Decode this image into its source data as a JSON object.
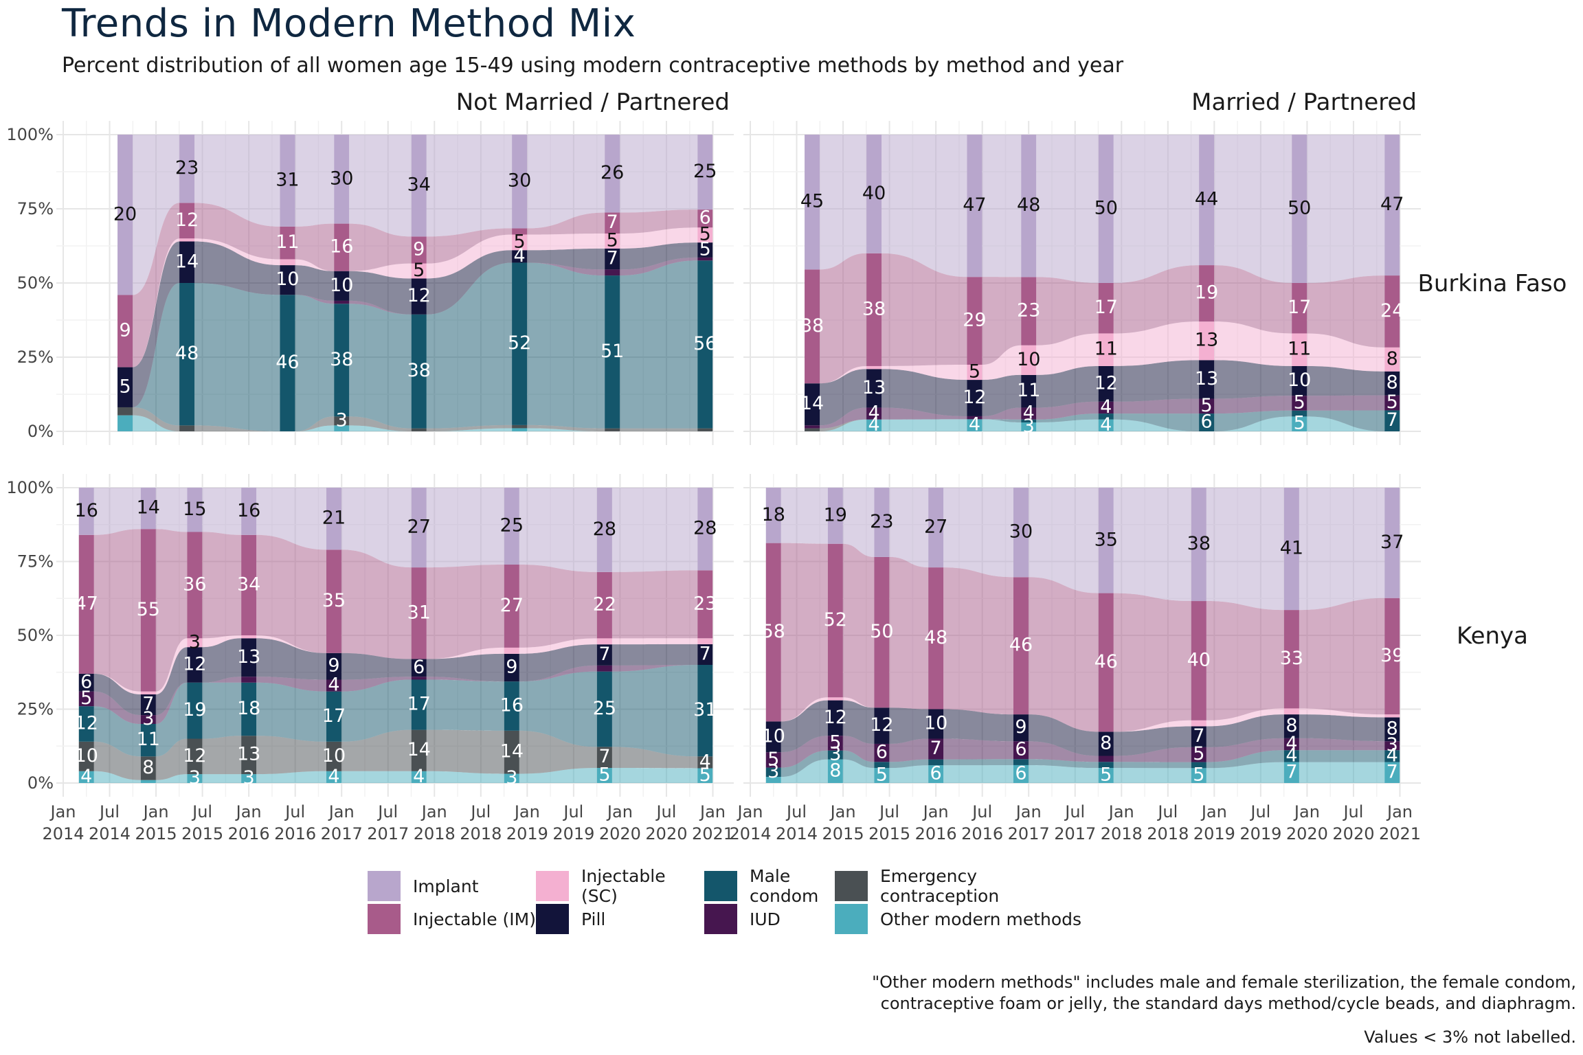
{
  "title": "Trends in Modern Method Mix",
  "subtitle": "Percent distribution of all women age 15-49 using modern contraceptive methods by method and year",
  "notes": [
    "\"Other modern methods\" includes male and female sterilization, the female condom,",
    "contraceptive foam or jelly, the standard days method/cycle beads, and diaphragm."
  ],
  "note_small": "Values < 3% not labelled.",
  "colors": {
    "Other modern methods": "#4badbd",
    "Emergency contraception": "#4a5053",
    "Male condom": "#14566b",
    "IUD": "#46164f",
    "Pill": "#12143a",
    "Injectable (SC)": "#f4b0d1",
    "Injectable (IM)": "#a85b8a",
    "Implant": "#b8a6cc"
  },
  "legend": [
    {
      "name": "Implant",
      "color": "#b8a6cc"
    },
    {
      "name": "Injectable (SC)",
      "color": "#f4b0d1"
    },
    {
      "name": "Male condom",
      "color": "#14566b"
    },
    {
      "name": "Emergency contraception",
      "color": "#4a5053"
    },
    {
      "name": "Injectable (IM)",
      "color": "#a85b8a"
    },
    {
      "name": "Pill",
      "color": "#12143a"
    },
    {
      "name": "IUD",
      "color": "#46164f"
    },
    {
      "name": "Other modern methods",
      "color": "#4badbd"
    }
  ],
  "chart_data": {
    "type": "area",
    "description_of_encoding": "Stacked alluvial bars per survey date; values are percent of modern method users. Stack order bottom to top: Other modern methods, Emergency contraception, Male condom, IUD, Pill, Injectable (SC), Injectable (IM), Implant.",
    "x_axis": {
      "range": [
        "2014-01",
        "2021-03"
      ],
      "tick_labels": [
        [
          "Jan",
          "2014"
        ],
        [
          "Jul",
          "2014"
        ],
        [
          "Jan",
          "2015"
        ],
        [
          "Jul",
          "2015"
        ],
        [
          "Jan",
          "2016"
        ],
        [
          "Jul",
          "2016"
        ],
        [
          "Jan",
          "2017"
        ],
        [
          "Jul",
          "2017"
        ],
        [
          "Jan",
          "2018"
        ],
        [
          "Jul",
          "2018"
        ],
        [
          "Jan",
          "2019"
        ],
        [
          "Jul",
          "2019"
        ],
        [
          "Jan",
          "2020"
        ],
        [
          "Jul",
          "2020"
        ],
        [
          "Jan",
          "2021"
        ]
      ]
    },
    "y_axis": {
      "ylim": [
        0,
        100
      ],
      "tick_labels": [
        "0%",
        "25%",
        "50%",
        "75%",
        "100%"
      ]
    },
    "grid": true,
    "legend_position": "bottom",
    "stack_order": [
      "Other modern methods",
      "Emergency contraception",
      "Male condom",
      "IUD",
      "Pill",
      "Injectable (SC)",
      "Injectable (IM)",
      "Implant"
    ],
    "panels": [
      {
        "row": "Burkina Faso",
        "col": "Not Married / Partnered",
        "series": [
          {
            "date": "2014-09",
            "values": {
              "Other modern methods": 2,
              "Emergency contraception": 1,
              "Male condom": 0,
              "IUD": 0,
              "Pill": 5,
              "Injectable (SC)": 0,
              "Injectable (IM)": 9,
              "Implant": 20
            }
          },
          {
            "date": "2015-05",
            "values": {
              "Other modern methods": 0,
              "Emergency contraception": 2,
              "Male condom": 48,
              "IUD": 0,
              "Pill": 14,
              "Injectable (SC)": 1,
              "Injectable (IM)": 12,
              "Implant": 23
            }
          },
          {
            "date": "2016-06",
            "values": {
              "Other modern methods": 0,
              "Emergency contraception": 0,
              "Male condom": 46,
              "IUD": 0,
              "Pill": 10,
              "Injectable (SC)": 2,
              "Injectable (IM)": 11,
              "Implant": 31
            }
          },
          {
            "date": "2017-01",
            "values": {
              "Other modern methods": 2,
              "Emergency contraception": 3,
              "Male condom": 38,
              "IUD": 1,
              "Pill": 10,
              "Injectable (SC)": 0,
              "Injectable (IM)": 16,
              "Implant": 30
            }
          },
          {
            "date": "2017-11",
            "values": {
              "Other modern methods": 0,
              "Emergency contraception": 1,
              "Male condom": 38,
              "IUD": 0,
              "Pill": 12,
              "Injectable (SC)": 5,
              "Injectable (IM)": 9,
              "Implant": 34
            }
          },
          {
            "date": "2018-12",
            "values": {
              "Other modern methods": 1,
              "Emergency contraception": 1,
              "Male condom": 52,
              "IUD": 0,
              "Pill": 4,
              "Injectable (SC)": 5,
              "Injectable (IM)": 2,
              "Implant": 30
            }
          },
          {
            "date": "2019-12",
            "values": {
              "Other modern methods": 0,
              "Emergency contraception": 1,
              "Male condom": 51,
              "IUD": 2,
              "Pill": 7,
              "Injectable (SC)": 5,
              "Injectable (IM)": 7,
              "Implant": 26
            }
          },
          {
            "date": "2020-12",
            "values": {
              "Other modern methods": 0,
              "Emergency contraception": 1,
              "Male condom": 56,
              "IUD": 1,
              "Pill": 5,
              "Injectable (SC)": 5,
              "Injectable (IM)": 6,
              "Implant": 25
            }
          }
        ]
      },
      {
        "row": "Burkina Faso",
        "col": "Married / Partnered",
        "series": [
          {
            "date": "2014-09",
            "values": {
              "Other modern methods": 0,
              "Emergency contraception": 1,
              "Male condom": 0,
              "IUD": 1,
              "Pill": 14,
              "Injectable (SC)": 0,
              "Injectable (IM)": 38,
              "Implant": 45
            }
          },
          {
            "date": "2015-05",
            "values": {
              "Other modern methods": 4,
              "Emergency contraception": 0,
              "Male condom": 0,
              "IUD": 4,
              "Pill": 13,
              "Injectable (SC)": 1,
              "Injectable (IM)": 38,
              "Implant": 40
            }
          },
          {
            "date": "2016-06",
            "values": {
              "Other modern methods": 4,
              "Emergency contraception": 0,
              "Male condom": 0,
              "IUD": 1,
              "Pill": 12,
              "Injectable (SC)": 5,
              "Injectable (IM)": 29,
              "Implant": 47
            }
          },
          {
            "date": "2017-01",
            "values": {
              "Other modern methods": 3,
              "Emergency contraception": 0,
              "Male condom": 1,
              "IUD": 4,
              "Pill": 11,
              "Injectable (SC)": 10,
              "Injectable (IM)": 23,
              "Implant": 48
            }
          },
          {
            "date": "2017-11",
            "values": {
              "Other modern methods": 4,
              "Emergency contraception": 0,
              "Male condom": 2,
              "IUD": 4,
              "Pill": 12,
              "Injectable (SC)": 11,
              "Injectable (IM)": 17,
              "Implant": 50
            }
          },
          {
            "date": "2018-12",
            "values": {
              "Other modern methods": 0,
              "Emergency contraception": 0,
              "Male condom": 6,
              "IUD": 5,
              "Pill": 13,
              "Injectable (SC)": 13,
              "Injectable (IM)": 19,
              "Implant": 44
            }
          },
          {
            "date": "2019-12",
            "values": {
              "Other modern methods": 5,
              "Emergency contraception": 0,
              "Male condom": 2,
              "IUD": 5,
              "Pill": 10,
              "Injectable (SC)": 11,
              "Injectable (IM)": 17,
              "Implant": 50
            }
          },
          {
            "date": "2020-12",
            "values": {
              "Other modern methods": 0,
              "Emergency contraception": 0,
              "Male condom": 7,
              "IUD": 5,
              "Pill": 8,
              "Injectable (SC)": 8,
              "Injectable (IM)": 24,
              "Implant": 47
            }
          }
        ]
      },
      {
        "row": "Kenya",
        "col": "Not Married / Partnered",
        "series": [
          {
            "date": "2014-04",
            "values": {
              "Other modern methods": 4,
              "Emergency contraception": 10,
              "Male condom": 12,
              "IUD": 5,
              "Pill": 6,
              "Injectable (SC)": 0,
              "Injectable (IM)": 47,
              "Implant": 16
            }
          },
          {
            "date": "2014-12",
            "values": {
              "Other modern methods": 1,
              "Emergency contraception": 8,
              "Male condom": 11,
              "IUD": 3,
              "Pill": 7,
              "Injectable (SC)": 1,
              "Injectable (IM)": 55,
              "Implant": 14
            }
          },
          {
            "date": "2015-06",
            "values": {
              "Other modern methods": 3,
              "Emergency contraception": 12,
              "Male condom": 19,
              "IUD": 0,
              "Pill": 12,
              "Injectable (SC)": 3,
              "Injectable (IM)": 36,
              "Implant": 15
            }
          },
          {
            "date": "2016-01",
            "values": {
              "Other modern methods": 3,
              "Emergency contraception": 13,
              "Male condom": 18,
              "IUD": 2,
              "Pill": 13,
              "Injectable (SC)": 1,
              "Injectable (IM)": 34,
              "Implant": 16
            }
          },
          {
            "date": "2016-12",
            "values": {
              "Other modern methods": 4,
              "Emergency contraception": 10,
              "Male condom": 17,
              "IUD": 4,
              "Pill": 9,
              "Injectable (SC)": 0,
              "Injectable (IM)": 35,
              "Implant": 21
            }
          },
          {
            "date": "2017-11",
            "values": {
              "Other modern methods": 4,
              "Emergency contraception": 14,
              "Male condom": 17,
              "IUD": 1,
              "Pill": 6,
              "Injectable (SC)": 0,
              "Injectable (IM)": 31,
              "Implant": 27
            }
          },
          {
            "date": "2018-11",
            "values": {
              "Other modern methods": 3,
              "Emergency contraception": 14,
              "Male condom": 16,
              "IUD": 0,
              "Pill": 9,
              "Injectable (SC)": 2,
              "Injectable (IM)": 27,
              "Implant": 25
            }
          },
          {
            "date": "2019-11",
            "values": {
              "Other modern methods": 5,
              "Emergency contraception": 7,
              "Male condom": 25,
              "IUD": 2,
              "Pill": 7,
              "Injectable (SC)": 2,
              "Injectable (IM)": 22,
              "Implant": 28
            }
          },
          {
            "date": "2020-12",
            "values": {
              "Other modern methods": 5,
              "Emergency contraception": 4,
              "Male condom": 31,
              "IUD": 0,
              "Pill": 7,
              "Injectable (SC)": 2,
              "Injectable (IM)": 23,
              "Implant": 28
            }
          }
        ]
      },
      {
        "row": "Kenya",
        "col": "Married / Partnered",
        "series": [
          {
            "date": "2014-04",
            "values": {
              "Other modern methods": 2,
              "Emergency contraception": 0,
              "Male condom": 3,
              "IUD": 5,
              "Pill": 10,
              "Injectable (SC)": 0,
              "Injectable (IM)": 58,
              "Implant": 18
            }
          },
          {
            "date": "2014-12",
            "values": {
              "Other modern methods": 8,
              "Emergency contraception": 0,
              "Male condom": 3,
              "IUD": 5,
              "Pill": 12,
              "Injectable (SC)": 1,
              "Injectable (IM)": 52,
              "Implant": 19
            }
          },
          {
            "date": "2015-06",
            "values": {
              "Other modern methods": 5,
              "Emergency contraception": 0,
              "Male condom": 2,
              "IUD": 6,
              "Pill": 12,
              "Injectable (SC)": 0,
              "Injectable (IM)": 50,
              "Implant": 23
            }
          },
          {
            "date": "2016-01",
            "values": {
              "Other modern methods": 6,
              "Emergency contraception": 0,
              "Male condom": 2,
              "IUD": 7,
              "Pill": 10,
              "Injectable (SC)": 0,
              "Injectable (IM)": 48,
              "Implant": 27
            }
          },
          {
            "date": "2016-12",
            "values": {
              "Other modern methods": 6,
              "Emergency contraception": 0,
              "Male condom": 2,
              "IUD": 6,
              "Pill": 9,
              "Injectable (SC)": 0,
              "Injectable (IM)": 46,
              "Implant": 30
            }
          },
          {
            "date": "2017-11",
            "values": {
              "Other modern methods": 5,
              "Emergency contraception": 0,
              "Male condom": 2,
              "IUD": 2,
              "Pill": 8,
              "Injectable (SC)": 0,
              "Injectable (IM)": 46,
              "Implant": 35
            }
          },
          {
            "date": "2018-11",
            "values": {
              "Other modern methods": 5,
              "Emergency contraception": 0,
              "Male condom": 2,
              "IUD": 5,
              "Pill": 7,
              "Injectable (SC)": 2,
              "Injectable (IM)": 40,
              "Implant": 38
            }
          },
          {
            "date": "2019-11",
            "values": {
              "Other modern methods": 7,
              "Emergency contraception": 0,
              "Male condom": 4,
              "IUD": 4,
              "Pill": 8,
              "Injectable (SC)": 2,
              "Injectable (IM)": 33,
              "Implant": 41
            }
          },
          {
            "date": "2020-12",
            "values": {
              "Other modern methods": 7,
              "Emergency contraception": 0,
              "Male condom": 4,
              "IUD": 3,
              "Pill": 8,
              "Injectable (SC)": 1,
              "Injectable (IM)": 39,
              "Implant": 37
            }
          }
        ]
      }
    ]
  }
}
